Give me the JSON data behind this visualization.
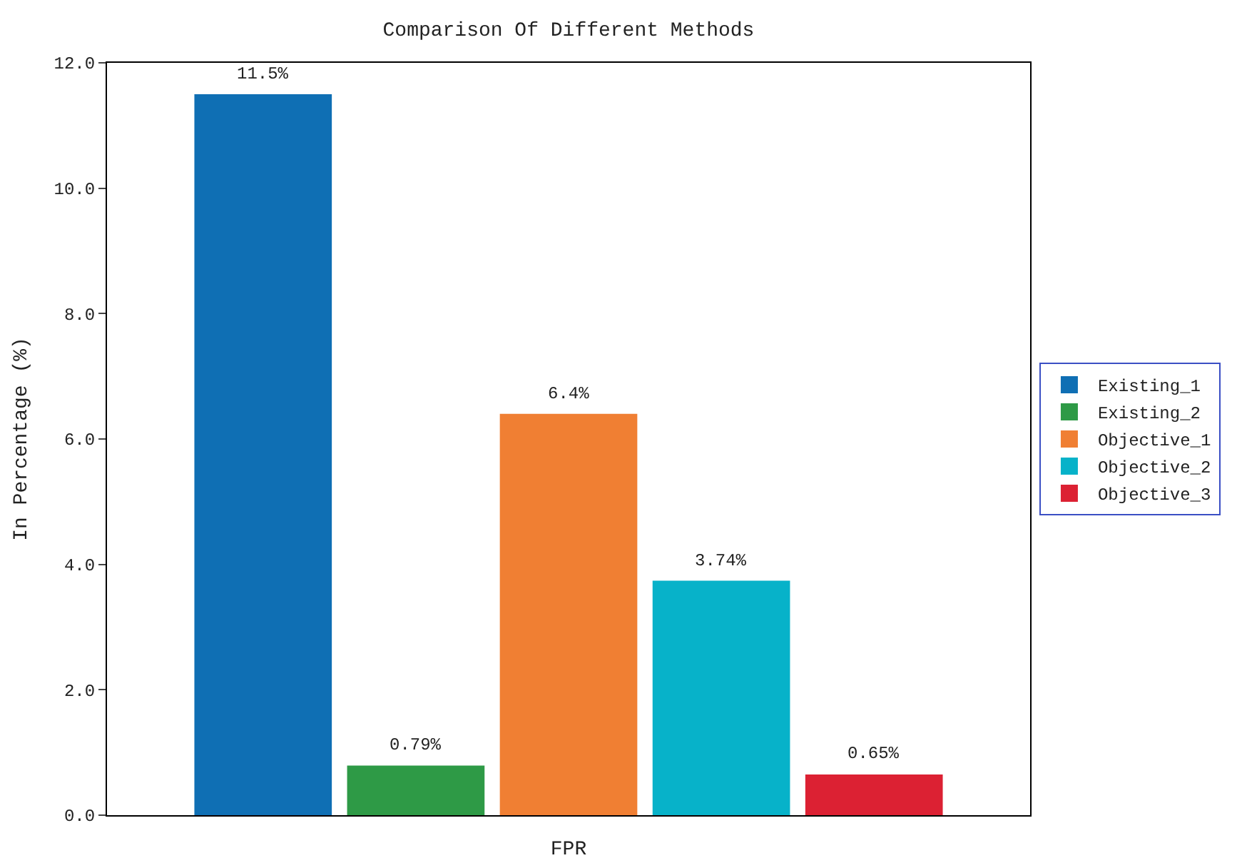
{
  "chart_data": {
    "type": "bar",
    "title": "Comparison Of Different Methods",
    "xlabel": "FPR",
    "ylabel": "In Percentage (%)",
    "categories": [
      null
    ],
    "series": [
      {
        "name": "Existing_1",
        "color": "#0f6fb4",
        "values": [
          11.5
        ],
        "value_labels": [
          "11.5%"
        ]
      },
      {
        "name": "Existing_2",
        "color": "#2e9a46",
        "values": [
          0.79
        ],
        "value_labels": [
          "0.79%"
        ]
      },
      {
        "name": "Objective_1",
        "color": "#f07f33",
        "values": [
          6.4
        ],
        "value_labels": [
          "6.4%"
        ]
      },
      {
        "name": "Objective_2",
        "color": "#07b2c9",
        "values": [
          3.74
        ],
        "value_labels": [
          "3.74%"
        ]
      },
      {
        "name": "Objective_3",
        "color": "#dc2133",
        "values": [
          0.65
        ],
        "value_labels": [
          "0.65%"
        ]
      }
    ],
    "ylim": [
      0,
      12
    ],
    "yticks": [
      {
        "value": 0,
        "label": "0.0"
      },
      {
        "value": 2,
        "label": "2.0"
      },
      {
        "value": 4,
        "label": "4.0"
      },
      {
        "value": 6,
        "label": "6.0"
      },
      {
        "value": 8,
        "label": "8.0"
      },
      {
        "value": 10,
        "label": "10.0"
      },
      {
        "value": 12,
        "label": "12.0"
      }
    ],
    "legend": "right"
  }
}
